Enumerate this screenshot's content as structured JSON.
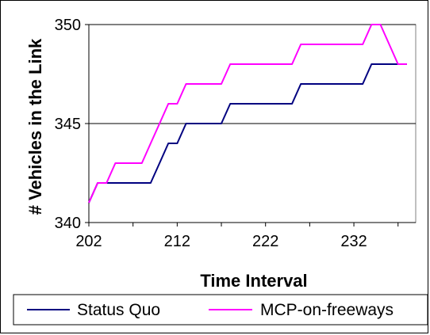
{
  "chart_data": {
    "type": "line",
    "title": "",
    "xlabel": "Time Interval",
    "ylabel": "# Vehicles in the Link",
    "xlim": [
      202,
      239
    ],
    "ylim": [
      340,
      350
    ],
    "xticks": [
      202,
      212,
      222,
      232
    ],
    "xtick_labels": [
      "202",
      "212",
      "222",
      "232"
    ],
    "yticks": [
      340,
      345,
      350
    ],
    "ytick_labels": [
      "340",
      "345",
      "350"
    ],
    "grid": "horizontal major lines",
    "legend": "bottom",
    "series": [
      {
        "name": "Status Quo",
        "color": "#000080",
        "points": [
          [
            202,
            341
          ],
          [
            203,
            342
          ],
          [
            204,
            342
          ],
          [
            205,
            342
          ],
          [
            206,
            342
          ],
          [
            207,
            342
          ],
          [
            208,
            342
          ],
          [
            209,
            342
          ],
          [
            210,
            343
          ],
          [
            211,
            344
          ],
          [
            212,
            344
          ],
          [
            213,
            345
          ],
          [
            214,
            345
          ],
          [
            215,
            345
          ],
          [
            216,
            345
          ],
          [
            217,
            345
          ],
          [
            218,
            346
          ],
          [
            219,
            346
          ],
          [
            220,
            346
          ],
          [
            221,
            346
          ],
          [
            222,
            346
          ],
          [
            223,
            346
          ],
          [
            224,
            346
          ],
          [
            225,
            346
          ],
          [
            226,
            347
          ],
          [
            227,
            347
          ],
          [
            228,
            347
          ],
          [
            229,
            347
          ],
          [
            230,
            347
          ],
          [
            231,
            347
          ],
          [
            232,
            347
          ],
          [
            233,
            347
          ],
          [
            234,
            348
          ],
          [
            235,
            348
          ],
          [
            236,
            348
          ],
          [
            237,
            348
          ],
          [
            238,
            348
          ]
        ]
      },
      {
        "name": "MCP-on-freeways",
        "color": "#FF00FF",
        "points": [
          [
            202,
            341
          ],
          [
            203,
            342
          ],
          [
            204,
            342
          ],
          [
            205,
            343
          ],
          [
            206,
            343
          ],
          [
            207,
            343
          ],
          [
            208,
            343
          ],
          [
            209,
            344
          ],
          [
            210,
            345
          ],
          [
            211,
            346
          ],
          [
            212,
            346
          ],
          [
            213,
            347
          ],
          [
            214,
            347
          ],
          [
            215,
            347
          ],
          [
            216,
            347
          ],
          [
            217,
            347
          ],
          [
            218,
            348
          ],
          [
            219,
            348
          ],
          [
            220,
            348
          ],
          [
            221,
            348
          ],
          [
            222,
            348
          ],
          [
            223,
            348
          ],
          [
            224,
            348
          ],
          [
            225,
            348
          ],
          [
            226,
            349
          ],
          [
            227,
            349
          ],
          [
            228,
            349
          ],
          [
            229,
            349
          ],
          [
            230,
            349
          ],
          [
            231,
            349
          ],
          [
            232,
            349
          ],
          [
            233,
            349
          ],
          [
            234,
            350
          ],
          [
            235,
            350
          ],
          [
            236,
            349
          ],
          [
            237,
            348
          ],
          [
            238,
            348
          ]
        ]
      }
    ]
  }
}
